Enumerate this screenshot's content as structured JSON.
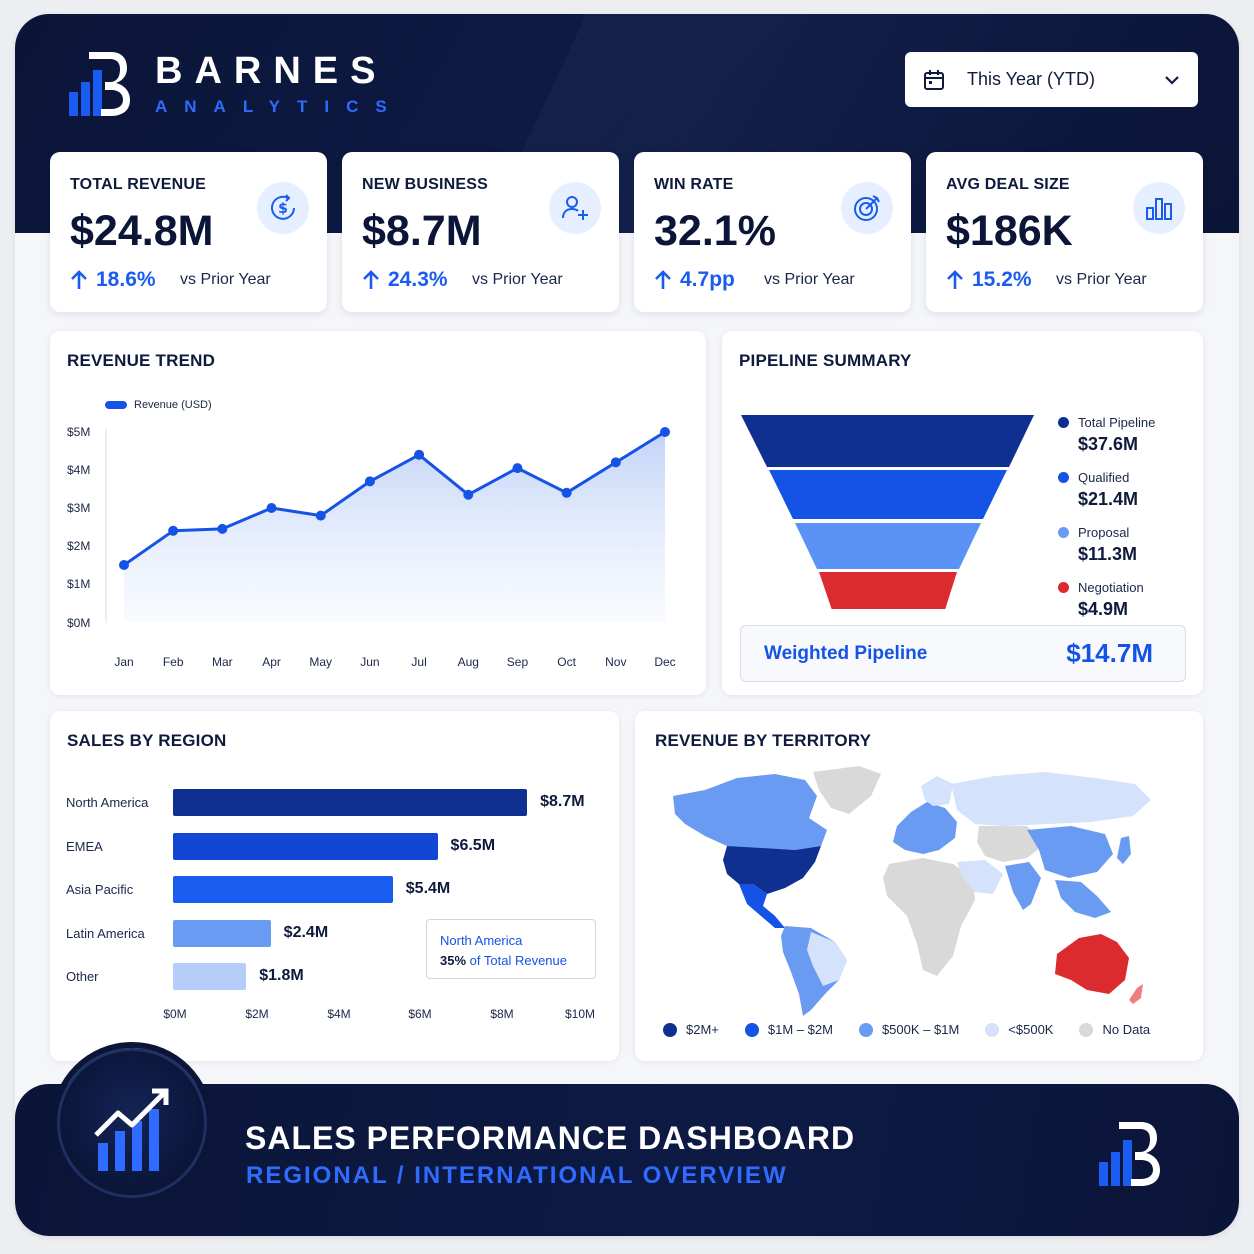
{
  "brand": {
    "name": "BARNES",
    "sub": "ANALYTICS"
  },
  "period": {
    "label": "This Year (YTD)",
    "icon": "calendar-icon"
  },
  "kpis": [
    {
      "title": "TOTAL REVENUE",
      "value": "$24.8M",
      "delta": "18.6%",
      "vs": "vs Prior Year",
      "icon": "dollar-icon"
    },
    {
      "title": "NEW BUSINESS",
      "value": "$8.7M",
      "delta": "24.3%",
      "vs": "vs Prior Year",
      "icon": "add-user-icon"
    },
    {
      "title": "WIN RATE",
      "value": "32.1%",
      "delta": "4.7pp",
      "vs": "vs Prior Year",
      "icon": "target-icon"
    },
    {
      "title": "AVG DEAL SIZE",
      "value": "$186K",
      "delta": "15.2%",
      "vs": "vs Prior Year",
      "icon": "bar-chart-icon"
    }
  ],
  "revenue_trend": {
    "title": "REVENUE TREND",
    "legend": "Revenue (USD)",
    "y_ticks": [
      "$5M",
      "$4M",
      "$3M",
      "$2M",
      "$1M",
      "$0M"
    ]
  },
  "pipeline": {
    "title": "PIPELINE SUMMARY",
    "stages": [
      {
        "name": "Total Pipeline",
        "value": "$37.6M",
        "color": "#0f2f91"
      },
      {
        "name": "Qualified",
        "value": "$21.4M",
        "color": "#1553e6"
      },
      {
        "name": "Proposal",
        "value": "$11.3M",
        "color": "#5b92f5"
      },
      {
        "name": "Negotiation",
        "value": "$4.9M",
        "color": "#dc2b2e"
      }
    ],
    "weighted_label": "Weighted Pipeline",
    "weighted_value": "$14.7M"
  },
  "regions": {
    "title": "SALES BY REGION",
    "x_ticks": [
      "$0M",
      "$2M",
      "$4M",
      "$6M",
      "$8M",
      "$10M"
    ],
    "callout_region": "North America",
    "callout_pct": "35%",
    "callout_suffix": "of Total Revenue"
  },
  "territory": {
    "title": "REVENUE BY TERRITORY",
    "legend": [
      {
        "label": "$2M+",
        "color": "#0f2f91"
      },
      {
        "label": "$1M – $2M",
        "color": "#1553e6"
      },
      {
        "label": "$500K – $1M",
        "color": "#6a9bf3"
      },
      {
        "label": "<$500K",
        "color": "#d4e2fb"
      },
      {
        "label": "No Data",
        "color": "#d9d9d9"
      }
    ]
  },
  "footer": {
    "title": "SALES PERFORMANCE DASHBOARD",
    "subtitle": "REGIONAL / INTERNATIONAL OVERVIEW"
  },
  "chart_data": [
    {
      "type": "area",
      "title": "REVENUE TREND",
      "x": [
        "Jan",
        "Feb",
        "Mar",
        "Apr",
        "May",
        "Jun",
        "Jul",
        "Aug",
        "Sep",
        "Oct",
        "Nov",
        "Dec"
      ],
      "series": [
        {
          "name": "Revenue (USD)",
          "values": [
            1.5,
            2.4,
            2.45,
            3.0,
            2.8,
            3.7,
            4.4,
            3.35,
            4.05,
            3.4,
            4.2,
            5.0
          ]
        }
      ],
      "ylim": [
        0,
        5
      ],
      "y_unit": "$M",
      "grid": false,
      "legend": "top-left"
    },
    {
      "type": "bar",
      "title": "SALES BY REGION",
      "orientation": "horizontal",
      "categories": [
        "North America",
        "EMEA",
        "Asia Pacific",
        "Latin America",
        "Other"
      ],
      "values": [
        8.7,
        6.5,
        5.4,
        2.4,
        1.8
      ],
      "labels": [
        "$8.7M",
        "$6.5M",
        "$5.4M",
        "$2.4M",
        "$1.8M"
      ],
      "colors": [
        "#0f2f91",
        "#1247d6",
        "#1a5cf0",
        "#6a9bf3",
        "#b5cdf8"
      ],
      "xlim": [
        0,
        10
      ],
      "x_unit": "$M"
    }
  ]
}
